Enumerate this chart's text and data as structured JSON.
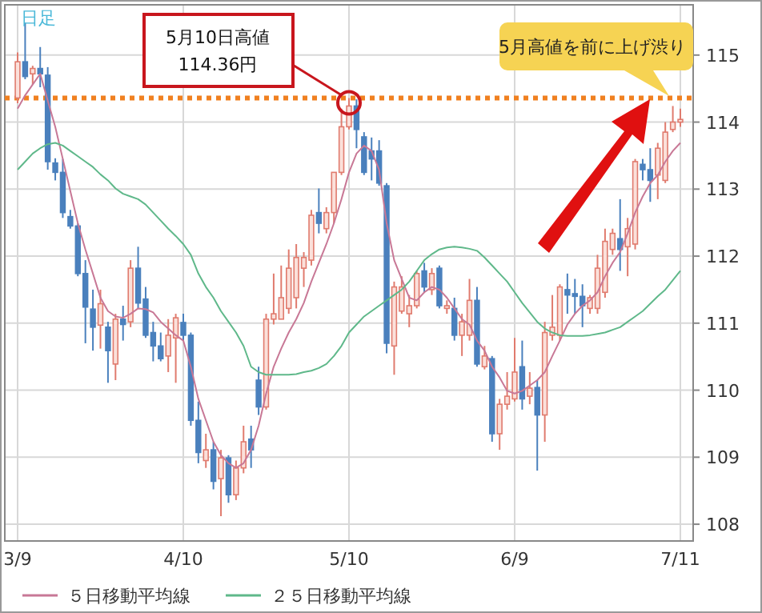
{
  "chart_data": {
    "type": "candlestick",
    "categories": [
      "3/9",
      null,
      null,
      null,
      null,
      null,
      null,
      null,
      null,
      null,
      null,
      null,
      null,
      null,
      null,
      null,
      null,
      null,
      null,
      null,
      null,
      null,
      "4/10",
      null,
      null,
      null,
      null,
      null,
      null,
      null,
      null,
      null,
      null,
      null,
      null,
      null,
      null,
      null,
      null,
      null,
      null,
      null,
      null,
      null,
      "5/10",
      null,
      null,
      null,
      null,
      null,
      null,
      null,
      null,
      null,
      null,
      null,
      null,
      null,
      null,
      null,
      null,
      null,
      null,
      null,
      null,
      null,
      "6/9",
      null,
      null,
      null,
      null,
      null,
      null,
      null,
      null,
      null,
      null,
      null,
      null,
      null,
      null,
      null,
      null,
      null,
      null,
      null,
      null,
      null,
      "7/11"
    ],
    "ohlc": [
      [
        114.36,
        115.04,
        114.28,
        114.9
      ],
      [
        114.9,
        115.48,
        114.64,
        114.68
      ],
      [
        114.72,
        114.84,
        114.56,
        114.8
      ],
      [
        114.8,
        115.12,
        114.52,
        114.72
      ],
      [
        114.7,
        114.82,
        113.29,
        113.41
      ],
      [
        113.39,
        113.46,
        113.13,
        113.25
      ],
      [
        113.25,
        113.45,
        112.57,
        112.65
      ],
      [
        112.59,
        112.69,
        112.41,
        112.45
      ],
      [
        112.45,
        112.49,
        111.7,
        111.74
      ],
      [
        111.74,
        111.94,
        110.7,
        111.24
      ],
      [
        111.21,
        111.5,
        110.59,
        110.94
      ],
      [
        110.97,
        111.5,
        110.62,
        111.29
      ],
      [
        110.94,
        111.02,
        110.11,
        110.59
      ],
      [
        110.39,
        111.14,
        110.15,
        111.06
      ],
      [
        111.06,
        111.26,
        110.74,
        110.98
      ],
      [
        111.02,
        111.94,
        110.94,
        111.82
      ],
      [
        111.82,
        112.14,
        111.22,
        111.3
      ],
      [
        111.36,
        111.54,
        110.78,
        110.82
      ],
      [
        110.86,
        111.02,
        110.43,
        110.66
      ],
      [
        110.66,
        110.86,
        110.43,
        110.47
      ],
      [
        110.51,
        111.06,
        110.27,
        110.82
      ],
      [
        110.78,
        111.14,
        110.11,
        111.08
      ],
      [
        111.01,
        111.14,
        110.74,
        110.82
      ],
      [
        110.82,
        110.86,
        109.47,
        109.55
      ],
      [
        109.55,
        109.83,
        108.91,
        109.07
      ],
      [
        108.95,
        109.35,
        108.84,
        109.11
      ],
      [
        109.11,
        109.23,
        108.52,
        108.64
      ],
      [
        108.68,
        109.11,
        108.12,
        108.99
      ],
      [
        108.99,
        109.03,
        108.32,
        108.44
      ],
      [
        108.44,
        108.95,
        108.36,
        108.84
      ],
      [
        108.84,
        109.47,
        108.76,
        109.23
      ],
      [
        109.27,
        109.47,
        108.84,
        109.11
      ],
      [
        110.15,
        110.35,
        109.63,
        109.75
      ],
      [
        109.75,
        111.14,
        109.71,
        111.06
      ],
      [
        111.06,
        111.74,
        110.98,
        111.14
      ],
      [
        111.06,
        111.86,
        111.06,
        111.38
      ],
      [
        111.22,
        112.1,
        111.14,
        111.82
      ],
      [
        111.38,
        112.18,
        111.22,
        111.98
      ],
      [
        111.82,
        112.06,
        111.54,
        111.98
      ],
      [
        111.94,
        112.69,
        111.86,
        112.61
      ],
      [
        112.65,
        113.01,
        112.34,
        112.49
      ],
      [
        112.41,
        112.73,
        112.34,
        112.65
      ],
      [
        112.65,
        113.25,
        112.49,
        113.25
      ],
      [
        113.25,
        114.2,
        113.21,
        113.93
      ],
      [
        113.93,
        114.36,
        113.89,
        114.24
      ],
      [
        114.24,
        114.34,
        113.61,
        113.89
      ],
      [
        113.78,
        113.85,
        113.21,
        113.25
      ],
      [
        113.57,
        113.77,
        113.13,
        113.45
      ],
      [
        113.57,
        113.73,
        113.05,
        113.09
      ],
      [
        113.05,
        113.09,
        110.55,
        110.7
      ],
      [
        110.66,
        111.62,
        110.23,
        111.54
      ],
      [
        111.18,
        111.7,
        111.14,
        111.54
      ],
      [
        111.14,
        111.42,
        110.94,
        111.26
      ],
      [
        111.26,
        111.78,
        111.22,
        111.74
      ],
      [
        111.78,
        111.9,
        111.46,
        111.54
      ],
      [
        111.5,
        111.82,
        111.42,
        111.74
      ],
      [
        111.82,
        111.86,
        111.22,
        111.26
      ],
      [
        111.22,
        111.34,
        111.14,
        111.26
      ],
      [
        111.22,
        111.38,
        110.74,
        110.82
      ],
      [
        110.82,
        111.14,
        110.51,
        111.02
      ],
      [
        110.82,
        111.66,
        110.74,
        111.34
      ],
      [
        111.34,
        111.54,
        110.35,
        110.39
      ],
      [
        110.35,
        110.66,
        110.31,
        110.51
      ],
      [
        110.47,
        110.51,
        109.23,
        109.35
      ],
      [
        109.35,
        109.87,
        109.11,
        109.79
      ],
      [
        109.79,
        110.27,
        109.71,
        109.91
      ],
      [
        109.87,
        110.78,
        109.83,
        110.27
      ],
      [
        110.35,
        110.74,
        109.71,
        109.87
      ],
      [
        109.91,
        110.27,
        109.79,
        110.03
      ],
      [
        110.04,
        110.15,
        108.8,
        109.63
      ],
      [
        109.63,
        111.02,
        109.23,
        110.86
      ],
      [
        110.82,
        111.42,
        110.74,
        110.94
      ],
      [
        110.82,
        111.58,
        110.74,
        111.54
      ],
      [
        111.5,
        111.74,
        111.14,
        111.42
      ],
      [
        111.44,
        111.66,
        111.14,
        111.4
      ],
      [
        111.4,
        111.58,
        110.94,
        111.26
      ],
      [
        111.22,
        111.42,
        111.14,
        111.38
      ],
      [
        111.22,
        112.02,
        111.14,
        111.82
      ],
      [
        111.46,
        112.41,
        111.38,
        112.22
      ],
      [
        112.1,
        112.41,
        112.02,
        112.34
      ],
      [
        112.26,
        112.85,
        111.78,
        112.1
      ],
      [
        112.14,
        112.57,
        111.7,
        112.41
      ],
      [
        112.18,
        113.45,
        112.1,
        113.41
      ],
      [
        113.37,
        113.45,
        113.13,
        113.29
      ],
      [
        113.29,
        113.61,
        112.81,
        113.13
      ],
      [
        113.21,
        113.69,
        112.85,
        113.61
      ],
      [
        113.13,
        114.0,
        113.09,
        113.85
      ],
      [
        113.89,
        114.24,
        113.85,
        114.0
      ],
      [
        114.0,
        114.2,
        113.93,
        114.04
      ]
    ],
    "series": [
      {
        "name": "５日移動平均線",
        "type": "line",
        "color": "#c87896",
        "values": [
          114.2,
          114.4,
          114.56,
          114.72,
          114.32,
          113.93,
          113.45,
          112.97,
          112.49,
          112.1,
          111.74,
          111.38,
          111.18,
          111.1,
          111.08,
          111.14,
          111.22,
          111.21,
          111.16,
          111.02,
          110.92,
          110.82,
          110.74,
          110.35,
          109.87,
          109.55,
          109.23,
          109.03,
          108.91,
          108.84,
          108.91,
          109.11,
          109.47,
          109.95,
          110.35,
          110.62,
          110.86,
          111.06,
          111.3,
          111.62,
          111.9,
          112.18,
          112.49,
          112.85,
          113.25,
          113.53,
          113.65,
          113.57,
          113.29,
          112.49,
          111.94,
          111.66,
          111.38,
          111.34,
          111.46,
          111.54,
          111.5,
          111.38,
          111.22,
          111.06,
          110.98,
          110.74,
          110.59,
          110.35,
          110.19,
          109.99,
          109.95,
          109.99,
          110.07,
          110.15,
          110.27,
          110.51,
          110.74,
          110.98,
          111.14,
          111.26,
          111.34,
          111.46,
          111.7,
          111.9,
          112.06,
          112.34,
          112.65,
          112.89,
          113.09,
          113.21,
          113.41,
          113.57,
          113.69
        ]
      },
      {
        "name": "２５日移動平均線",
        "type": "line",
        "color": "#5fb88a",
        "values": [
          113.29,
          113.41,
          113.53,
          113.61,
          113.67,
          113.69,
          113.65,
          113.57,
          113.49,
          113.41,
          113.33,
          113.22,
          113.13,
          113.01,
          112.93,
          112.89,
          112.85,
          112.77,
          112.65,
          112.53,
          112.41,
          112.3,
          112.18,
          112.02,
          111.74,
          111.54,
          111.38,
          111.18,
          111.02,
          110.86,
          110.66,
          110.35,
          110.27,
          110.23,
          110.23,
          110.23,
          110.23,
          110.24,
          110.27,
          110.29,
          110.33,
          110.39,
          110.51,
          110.66,
          110.86,
          110.98,
          111.1,
          111.18,
          111.26,
          111.34,
          111.42,
          111.5,
          111.62,
          111.78,
          111.94,
          112.03,
          112.1,
          112.13,
          112.14,
          112.13,
          112.11,
          112.08,
          111.98,
          111.86,
          111.74,
          111.62,
          111.46,
          111.3,
          111.16,
          111.02,
          110.92,
          110.86,
          110.82,
          110.81,
          110.81,
          110.81,
          110.82,
          110.84,
          110.86,
          110.9,
          110.94,
          111.02,
          111.1,
          111.18,
          111.29,
          111.4,
          111.5,
          111.64,
          111.78
        ]
      }
    ],
    "ylim": [
      107.75,
      115.75
    ],
    "yticks": [
      108,
      109,
      110,
      111,
      112,
      113,
      114,
      115
    ],
    "grid": true,
    "legend": "bottom",
    "ref_lines": [
      {
        "axis": "y",
        "value": 114.36,
        "color": "#f08020",
        "line_style": "dotted"
      }
    ],
    "annotations": [
      "日足",
      {
        "text": "5月10日高値\n114.36円",
        "x": "5/10",
        "y": 114.36
      },
      "5月高値を前に上げ渋り"
    ]
  }
}
